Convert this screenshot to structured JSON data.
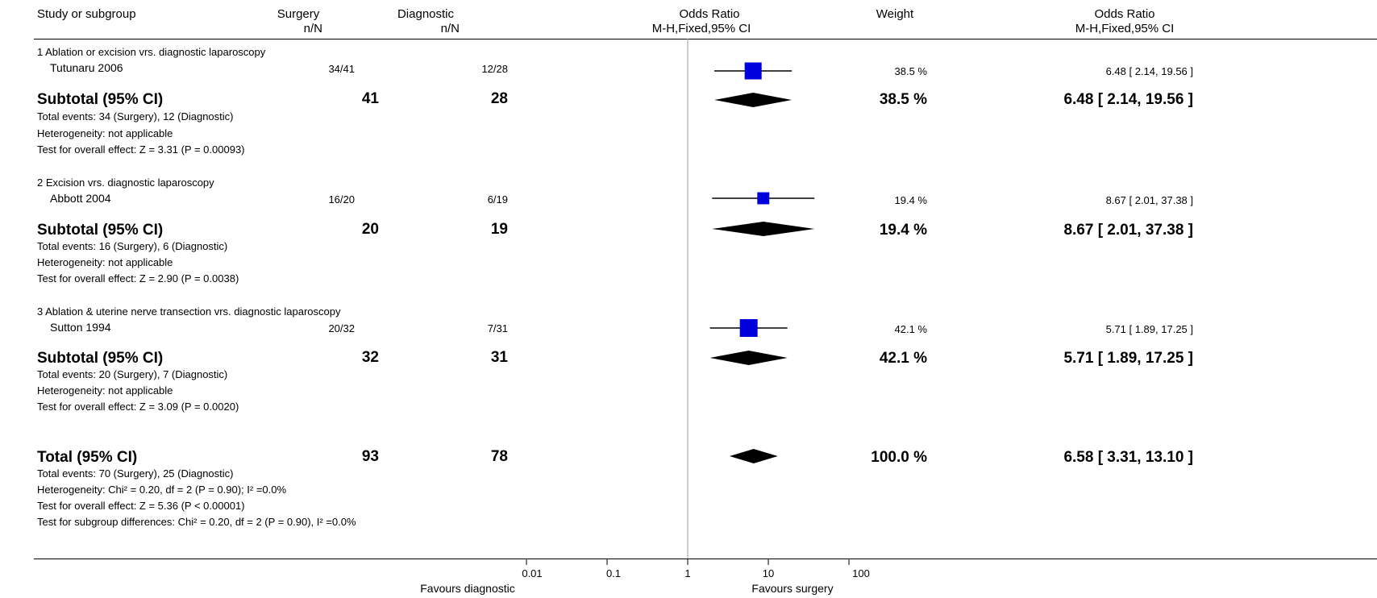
{
  "header": {
    "study": "Study or subgroup",
    "surgery": "Surgery",
    "surgery_sub": "n/N",
    "diagnostic": "Diagnostic",
    "diagnostic_sub": "n/N",
    "or_plot": "Odds Ratio",
    "or_plot_sub": "M-H,Fixed,95% CI",
    "weight": "Weight",
    "or_text": "Odds Ratio",
    "or_text_sub": "M-H,Fixed,95% CI"
  },
  "subgroups": [
    {
      "title": "1 Ablation or excision vrs. diagnostic laparoscopy",
      "study": {
        "name": "Tutunaru 2006",
        "surgery": "34/41",
        "diagnostic": "12/28",
        "weight": "38.5 %",
        "ci": "6.48 [ 2.14, 19.56 ]"
      },
      "subtotal": {
        "label": "Subtotal (95% CI)",
        "surgery": "41",
        "diagnostic": "28",
        "weight": "38.5 %",
        "ci": "6.48 [ 2.14, 19.56 ]"
      },
      "notes": [
        "Total events: 34 (Surgery), 12 (Diagnostic)",
        "Heterogeneity: not applicable",
        "Test for overall effect: Z = 3.31 (P = 0.00093)"
      ]
    },
    {
      "title": "2 Excision vrs. diagnostic laparoscopy",
      "study": {
        "name": "Abbott 2004",
        "surgery": "16/20",
        "diagnostic": "6/19",
        "weight": "19.4 %",
        "ci": "8.67 [ 2.01, 37.38 ]"
      },
      "subtotal": {
        "label": "Subtotal (95% CI)",
        "surgery": "20",
        "diagnostic": "19",
        "weight": "19.4 %",
        "ci": "8.67 [ 2.01, 37.38 ]"
      },
      "notes": [
        "Total events: 16 (Surgery), 6 (Diagnostic)",
        "Heterogeneity: not applicable",
        "Test for overall effect: Z = 2.90 (P = 0.0038)"
      ]
    },
    {
      "title": "3 Ablation & uterine nerve transection vrs. diagnostic laparoscopy",
      "study": {
        "name": "Sutton 1994",
        "surgery": "20/32",
        "diagnostic": "7/31",
        "weight": "42.1 %",
        "ci": "5.71 [ 1.89, 17.25 ]"
      },
      "subtotal": {
        "label": "Subtotal (95% CI)",
        "surgery": "32",
        "diagnostic": "31",
        "weight": "42.1 %",
        "ci": "5.71 [ 1.89, 17.25 ]"
      },
      "notes": [
        "Total events: 20 (Surgery), 7 (Diagnostic)",
        "Heterogeneity: not applicable",
        "Test for overall effect: Z = 3.09 (P = 0.0020)"
      ]
    }
  ],
  "total": {
    "label": "Total (95% CI)",
    "surgery": "93",
    "diagnostic": "78",
    "weight": "100.0 %",
    "ci": "6.58 [ 3.31, 13.10 ]",
    "notes": [
      "Total events: 70 (Surgery), 25 (Diagnostic)",
      "Heterogeneity: Chi² = 0.20, df = 2 (P = 0.90); I² =0.0%",
      "Test for overall effect: Z = 5.36 (P < 0.00001)",
      "Test for subgroup differences: Chi² = 0.20, df = 2 (P = 0.90), I² =0.0%"
    ]
  },
  "axis": {
    "ticks": [
      "0.01",
      "0.1",
      "1",
      "10",
      "100"
    ],
    "favours_left": "Favours diagnostic",
    "favours_right": "Favours surgery"
  },
  "colors": {
    "study_marker": "#0000dd",
    "diamond": "#000000",
    "line": "#000000",
    "null_line": "#999999"
  },
  "chart_data": {
    "type": "forest",
    "scale": "log",
    "xlim": [
      0.01,
      100
    ],
    "null_value": 1,
    "studies": [
      {
        "name": "Tutunaru 2006",
        "or": 6.48,
        "lower": 2.14,
        "upper": 19.56,
        "weight": 38.5
      },
      {
        "name": "Abbott 2004",
        "or": 8.67,
        "lower": 2.01,
        "upper": 37.38,
        "weight": 19.4
      },
      {
        "name": "Sutton 1994",
        "or": 5.71,
        "lower": 1.89,
        "upper": 17.25,
        "weight": 42.1
      }
    ],
    "subtotals": [
      {
        "or": 6.48,
        "lower": 2.14,
        "upper": 19.56
      },
      {
        "or": 8.67,
        "lower": 2.01,
        "upper": 37.38
      },
      {
        "or": 5.71,
        "lower": 1.89,
        "upper": 17.25
      }
    ],
    "overall": {
      "or": 6.58,
      "lower": 3.31,
      "upper": 13.1
    }
  }
}
